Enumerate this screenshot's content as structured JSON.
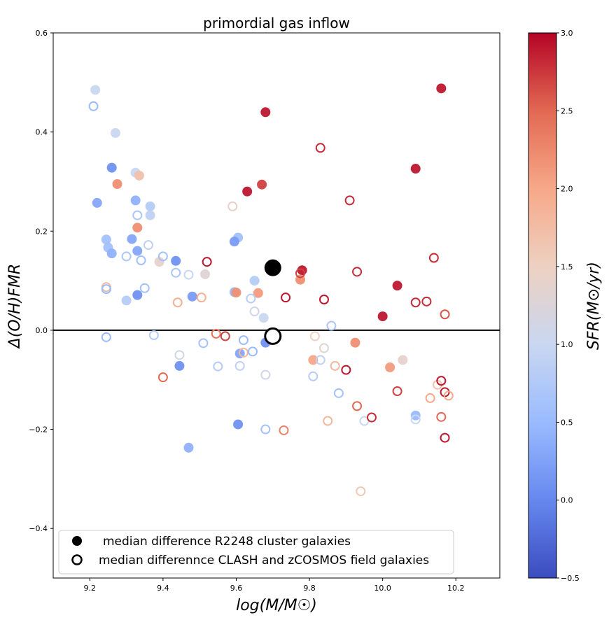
{
  "chart_data": {
    "type": "scatter",
    "title": "primordial gas inflow",
    "xlabel": "log(M/M☉)",
    "ylabel": "Δ(O/H)FMR",
    "xlim": [
      9.1,
      10.32
    ],
    "ylim": [
      -0.5,
      0.6
    ],
    "xticks": [
      9.2,
      9.4,
      9.6,
      9.8,
      10.0,
      10.2
    ],
    "xtick_labels": [
      "9.2",
      "9.4",
      "9.6",
      "9.8",
      "10.0",
      "10.2"
    ],
    "yticks": [
      -0.4,
      -0.2,
      0.0,
      0.2,
      0.4,
      0.6
    ],
    "ytick_labels": [
      "−0.4",
      "−0.2",
      "0.0",
      "0.2",
      "0.4",
      "0.6"
    ],
    "grid": false,
    "hline": 0.0,
    "colorbar": {
      "label": "SFR(M⊙/yr)",
      "range": [
        -0.5,
        3.0
      ],
      "cmap": "coolwarm",
      "stops": [
        "#3b4cc0",
        "#6688ee",
        "#9abbff",
        "#c9d7f0",
        "#edd1c2",
        "#f7a889",
        "#e26952",
        "#b40426"
      ],
      "ticks": [
        -0.5,
        0.0,
        0.5,
        1.0,
        1.5,
        2.0,
        2.5,
        3.0
      ],
      "tick_labels": [
        "−0.5",
        "0.0",
        "0.5",
        "1.0",
        "1.5",
        "2.0",
        "2.5",
        "3.0"
      ]
    },
    "legend": {
      "placement": "lower-left",
      "entries": [
        "median difference R2248 cluster galaxies",
        "median differennce CLASH and zCOSMOS field galaxies"
      ]
    },
    "series": [
      {
        "name": "median difference R2248 cluster galaxies",
        "marker": "filled",
        "points": [
          {
            "x": 9.215,
            "y": 0.485,
            "sfr": 1.0
          },
          {
            "x": 9.27,
            "y": 0.398,
            "sfr": 1.0
          },
          {
            "x": 9.26,
            "y": 0.328,
            "sfr": 0.1
          },
          {
            "x": 9.325,
            "y": 0.318,
            "sfr": 1.0
          },
          {
            "x": 9.335,
            "y": 0.312,
            "sfr": 1.7
          },
          {
            "x": 9.275,
            "y": 0.295,
            "sfr": 2.2
          },
          {
            "x": 9.22,
            "y": 0.257,
            "sfr": 0.3
          },
          {
            "x": 9.325,
            "y": 0.262,
            "sfr": 0.4
          },
          {
            "x": 9.365,
            "y": 0.25,
            "sfr": 0.8
          },
          {
            "x": 9.365,
            "y": 0.232,
            "sfr": 0.9
          },
          {
            "x": 9.33,
            "y": 0.207,
            "sfr": 2.2
          },
          {
            "x": 9.245,
            "y": 0.183,
            "sfr": 0.6
          },
          {
            "x": 9.315,
            "y": 0.184,
            "sfr": 0.3
          },
          {
            "x": 9.25,
            "y": 0.167,
            "sfr": 0.6
          },
          {
            "x": 9.26,
            "y": 0.155,
            "sfr": 0.4
          },
          {
            "x": 9.33,
            "y": 0.16,
            "sfr": 0.3
          },
          {
            "x": 9.39,
            "y": 0.138,
            "sfr": 1.4
          },
          {
            "x": 9.435,
            "y": 0.14,
            "sfr": 0.1
          },
          {
            "x": 9.3,
            "y": 0.06,
            "sfr": 0.8
          },
          {
            "x": 9.33,
            "y": 0.071,
            "sfr": 0.1
          },
          {
            "x": 9.48,
            "y": 0.068,
            "sfr": 0.2
          },
          {
            "x": 9.515,
            "y": 0.113,
            "sfr": 1.3
          },
          {
            "x": 9.605,
            "y": 0.187,
            "sfr": 0.6
          },
          {
            "x": 9.595,
            "y": 0.179,
            "sfr": 0.2
          },
          {
            "x": 9.595,
            "y": 0.077,
            "sfr": 0.5
          },
          {
            "x": 9.6,
            "y": 0.076,
            "sfr": 2.2
          },
          {
            "x": 9.65,
            "y": 0.1,
            "sfr": 0.8
          },
          {
            "x": 9.66,
            "y": 0.075,
            "sfr": 2.1
          },
          {
            "x": 9.675,
            "y": 0.025,
            "sfr": 1.0
          },
          {
            "x": 9.68,
            "y": -0.025,
            "sfr": 0.1
          },
          {
            "x": 9.61,
            "y": -0.047,
            "sfr": 0.3
          },
          {
            "x": 9.445,
            "y": -0.072,
            "sfr": 0.1
          },
          {
            "x": 9.605,
            "y": -0.19,
            "sfr": 0.1
          },
          {
            "x": 9.47,
            "y": -0.237,
            "sfr": 0.4
          },
          {
            "x": 9.68,
            "y": 0.44,
            "sfr": 2.9
          },
          {
            "x": 9.63,
            "y": 0.28,
            "sfr": 2.9
          },
          {
            "x": 9.67,
            "y": 0.294,
            "sfr": 2.7
          },
          {
            "x": 9.78,
            "y": 0.121,
            "sfr": 2.9
          },
          {
            "x": 9.775,
            "y": 0.102,
            "sfr": 2.2
          },
          {
            "x": 10.0,
            "y": 0.028,
            "sfr": 2.9
          },
          {
            "x": 10.04,
            "y": 0.09,
            "sfr": 2.9
          },
          {
            "x": 10.09,
            "y": 0.326,
            "sfr": 2.9
          },
          {
            "x": 10.16,
            "y": 0.488,
            "sfr": 2.9
          },
          {
            "x": 9.81,
            "y": -0.06,
            "sfr": 2.0
          },
          {
            "x": 9.925,
            "y": -0.025,
            "sfr": 2.2
          },
          {
            "x": 10.02,
            "y": -0.075,
            "sfr": 2.1
          },
          {
            "x": 10.055,
            "y": -0.06,
            "sfr": 1.4
          },
          {
            "x": 10.09,
            "y": -0.172,
            "sfr": 0.5
          }
        ]
      },
      {
        "name": "median differennce CLASH and zCOSMOS field galaxies",
        "marker": "open",
        "points": [
          {
            "x": 9.21,
            "y": 0.452,
            "sfr": 0.5
          },
          {
            "x": 9.33,
            "y": 0.232,
            "sfr": 0.7
          },
          {
            "x": 9.36,
            "y": 0.172,
            "sfr": 0.9
          },
          {
            "x": 9.3,
            "y": 0.149,
            "sfr": 0.7
          },
          {
            "x": 9.34,
            "y": 0.141,
            "sfr": 0.6
          },
          {
            "x": 9.4,
            "y": 0.149,
            "sfr": 0.6
          },
          {
            "x": 9.245,
            "y": 0.087,
            "sfr": 1.8
          },
          {
            "x": 9.245,
            "y": 0.083,
            "sfr": 0.5
          },
          {
            "x": 9.35,
            "y": 0.085,
            "sfr": 0.6
          },
          {
            "x": 9.435,
            "y": 0.116,
            "sfr": 0.7
          },
          {
            "x": 9.47,
            "y": 0.112,
            "sfr": 1.0
          },
          {
            "x": 9.44,
            "y": 0.056,
            "sfr": 1.9
          },
          {
            "x": 9.505,
            "y": 0.066,
            "sfr": 1.9
          },
          {
            "x": 9.245,
            "y": -0.014,
            "sfr": 0.5
          },
          {
            "x": 9.375,
            "y": -0.01,
            "sfr": 0.8
          },
          {
            "x": 9.51,
            "y": -0.026,
            "sfr": 0.6
          },
          {
            "x": 9.445,
            "y": -0.05,
            "sfr": 1.1
          },
          {
            "x": 9.4,
            "y": -0.095,
            "sfr": 2.5
          },
          {
            "x": 9.52,
            "y": 0.138,
            "sfr": 2.9
          },
          {
            "x": 9.545,
            "y": -0.007,
            "sfr": 2.4
          },
          {
            "x": 9.57,
            "y": -0.012,
            "sfr": 2.7
          },
          {
            "x": 9.55,
            "y": -0.073,
            "sfr": 0.8
          },
          {
            "x": 9.59,
            "y": 0.25,
            "sfr": 1.4
          },
          {
            "x": 9.64,
            "y": 0.064,
            "sfr": 0.8
          },
          {
            "x": 9.65,
            "y": 0.038,
            "sfr": 1.1
          },
          {
            "x": 9.62,
            "y": -0.02,
            "sfr": 0.5
          },
          {
            "x": 9.62,
            "y": -0.045,
            "sfr": 1.8
          },
          {
            "x": 9.645,
            "y": -0.043,
            "sfr": 0.5
          },
          {
            "x": 9.61,
            "y": -0.072,
            "sfr": 0.9
          },
          {
            "x": 9.68,
            "y": -0.09,
            "sfr": 1.1
          },
          {
            "x": 9.68,
            "y": -0.2,
            "sfr": 0.6
          },
          {
            "x": 9.73,
            "y": -0.202,
            "sfr": 2.3
          },
          {
            "x": 9.735,
            "y": 0.066,
            "sfr": 2.9
          },
          {
            "x": 9.775,
            "y": 0.115,
            "sfr": 2.7
          },
          {
            "x": 9.83,
            "y": 0.368,
            "sfr": 2.8
          },
          {
            "x": 9.84,
            "y": 0.062,
            "sfr": 2.9
          },
          {
            "x": 9.91,
            "y": 0.262,
            "sfr": 2.8
          },
          {
            "x": 9.93,
            "y": 0.118,
            "sfr": 2.8
          },
          {
            "x": 9.86,
            "y": 0.009,
            "sfr": 0.7
          },
          {
            "x": 9.815,
            "y": -0.012,
            "sfr": 1.5
          },
          {
            "x": 9.84,
            "y": -0.036,
            "sfr": 1.3
          },
          {
            "x": 9.83,
            "y": -0.06,
            "sfr": 0.9
          },
          {
            "x": 9.81,
            "y": -0.093,
            "sfr": 0.8
          },
          {
            "x": 9.87,
            "y": -0.072,
            "sfr": 1.8
          },
          {
            "x": 9.9,
            "y": -0.08,
            "sfr": 2.9
          },
          {
            "x": 9.88,
            "y": -0.127,
            "sfr": 0.6
          },
          {
            "x": 9.93,
            "y": -0.153,
            "sfr": 2.5
          },
          {
            "x": 9.85,
            "y": -0.183,
            "sfr": 1.8
          },
          {
            "x": 9.95,
            "y": -0.183,
            "sfr": 1.0
          },
          {
            "x": 9.97,
            "y": -0.176,
            "sfr": 2.8
          },
          {
            "x": 9.94,
            "y": -0.325,
            "sfr": 1.6
          },
          {
            "x": 10.04,
            "y": -0.123,
            "sfr": 2.7
          },
          {
            "x": 10.09,
            "y": 0.056,
            "sfr": 2.8
          },
          {
            "x": 10.12,
            "y": 0.058,
            "sfr": 2.8
          },
          {
            "x": 10.14,
            "y": 0.146,
            "sfr": 2.8
          },
          {
            "x": 10.17,
            "y": 0.032,
            "sfr": 2.6
          },
          {
            "x": 10.09,
            "y": -0.18,
            "sfr": 1.0
          },
          {
            "x": 10.15,
            "y": -0.11,
            "sfr": 1.7
          },
          {
            "x": 10.16,
            "y": -0.102,
            "sfr": 2.9
          },
          {
            "x": 10.17,
            "y": -0.125,
            "sfr": 2.9
          },
          {
            "x": 10.13,
            "y": -0.137,
            "sfr": 2.0
          },
          {
            "x": 10.18,
            "y": -0.132,
            "sfr": 2.0
          },
          {
            "x": 10.16,
            "y": -0.175,
            "sfr": 2.5
          },
          {
            "x": 10.17,
            "y": -0.217,
            "sfr": 2.9
          }
        ]
      }
    ],
    "medians": [
      {
        "series": "median difference R2248 cluster galaxies",
        "x": 9.7,
        "y": 0.126,
        "marker": "filled"
      },
      {
        "series": "median differennce CLASH and zCOSMOS field galaxies",
        "x": 9.7,
        "y": -0.012,
        "marker": "open"
      }
    ]
  }
}
